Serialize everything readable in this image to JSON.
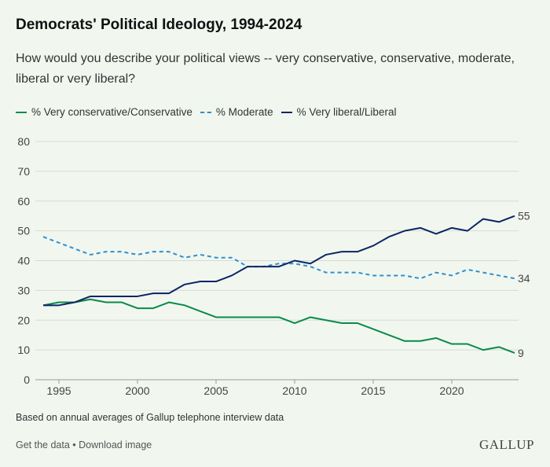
{
  "title": "Democrats' Political Ideology, 1994-2024",
  "subtitle": "How would you describe your political views -- very conservative, conservative, moderate, liberal or very liberal?",
  "note": "Based on annual averages of Gallup telephone interview data",
  "footer": {
    "get_data": "Get the data",
    "separator": " • ",
    "download": "Download image"
  },
  "logo": "GALLUP",
  "chart_data": {
    "type": "line",
    "title": "Democrats' Political Ideology, 1994-2024",
    "xlabel": "",
    "ylabel": "",
    "ylim": [
      0,
      80
    ],
    "xlim": [
      1994,
      2024
    ],
    "yticks": [
      0,
      10,
      20,
      30,
      40,
      50,
      60,
      70,
      80
    ],
    "xticks": [
      1995,
      2000,
      2005,
      2010,
      2015,
      2020
    ],
    "grid": true,
    "legend": "top-left",
    "x": [
      1994,
      1995,
      1996,
      1997,
      1998,
      1999,
      2000,
      2001,
      2002,
      2003,
      2004,
      2005,
      2006,
      2007,
      2008,
      2009,
      2010,
      2011,
      2012,
      2013,
      2014,
      2015,
      2016,
      2017,
      2018,
      2019,
      2020,
      2021,
      2022,
      2023,
      2024
    ],
    "series": [
      {
        "name": "% Very conservative/Conservative",
        "color": "#0a8a4a",
        "dash": false,
        "end_label": "9",
        "values": [
          25,
          26,
          26,
          27,
          26,
          26,
          24,
          24,
          26,
          25,
          23,
          21,
          21,
          21,
          21,
          21,
          19,
          21,
          20,
          19,
          19,
          17,
          15,
          13,
          13,
          14,
          12,
          12,
          10,
          11,
          9
        ]
      },
      {
        "name": "% Moderate",
        "color": "#2f8fd0",
        "dash": true,
        "end_label": "34",
        "values": [
          48,
          46,
          44,
          42,
          43,
          43,
          42,
          43,
          43,
          41,
          42,
          41,
          41,
          38,
          38,
          39,
          39,
          38,
          36,
          36,
          36,
          35,
          35,
          35,
          34,
          36,
          35,
          37,
          36,
          35,
          34
        ]
      },
      {
        "name": "% Very liberal/Liberal",
        "color": "#0c2466",
        "dash": false,
        "end_label": "55",
        "values": [
          25,
          25,
          26,
          28,
          28,
          28,
          28,
          29,
          29,
          32,
          33,
          33,
          35,
          38,
          38,
          38,
          40,
          39,
          42,
          43,
          43,
          45,
          48,
          50,
          51,
          49,
          51,
          50,
          54,
          53,
          55
        ]
      }
    ]
  }
}
